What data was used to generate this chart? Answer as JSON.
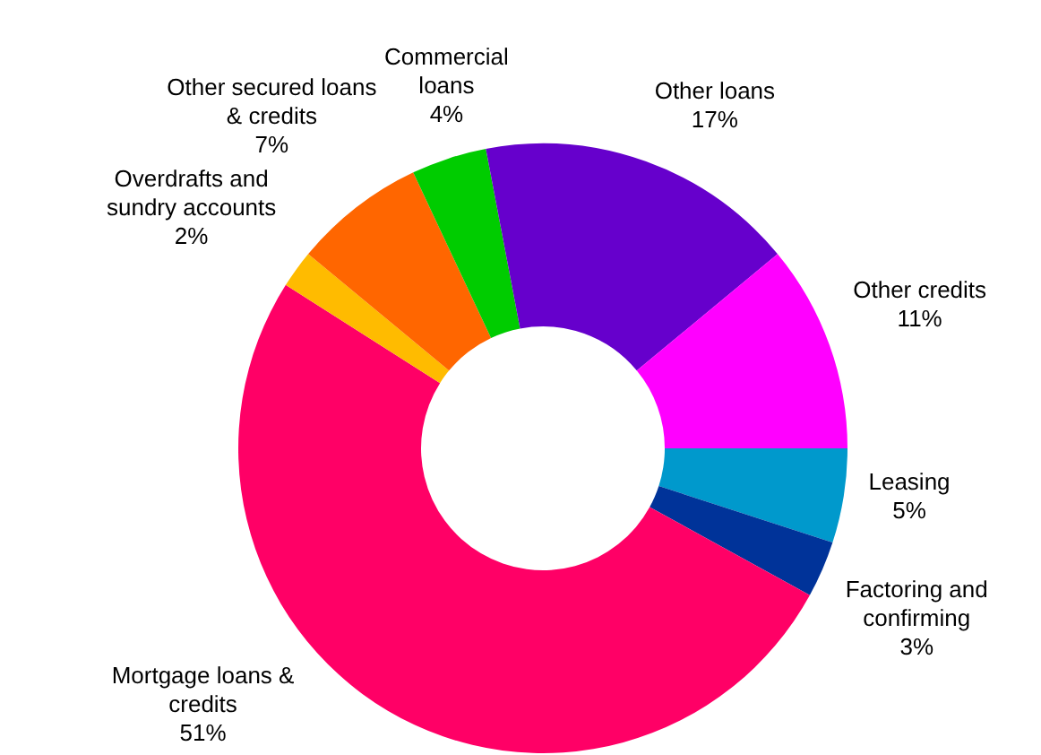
{
  "chart_data": {
    "type": "donut",
    "categories": [
      "Leasing",
      "Factoring and confirming",
      "Mortgage loans & credits",
      "Overdrafts and sundry accounts",
      "Other secured loans & credits",
      "Commercial loans",
      "Other loans",
      "Other credits"
    ],
    "values": [
      5,
      3,
      51,
      2,
      7,
      4,
      17,
      11
    ],
    "colors": [
      "#0099cc",
      "#003399",
      "#ff0066",
      "#ffbb00",
      "#ff6600",
      "#00cc00",
      "#6600cc",
      "#ff00ff"
    ],
    "value_labels": [
      "5%",
      "3%",
      "51%",
      "2%",
      "7%",
      "4%",
      "17%",
      "11%"
    ],
    "legend": false
  }
}
